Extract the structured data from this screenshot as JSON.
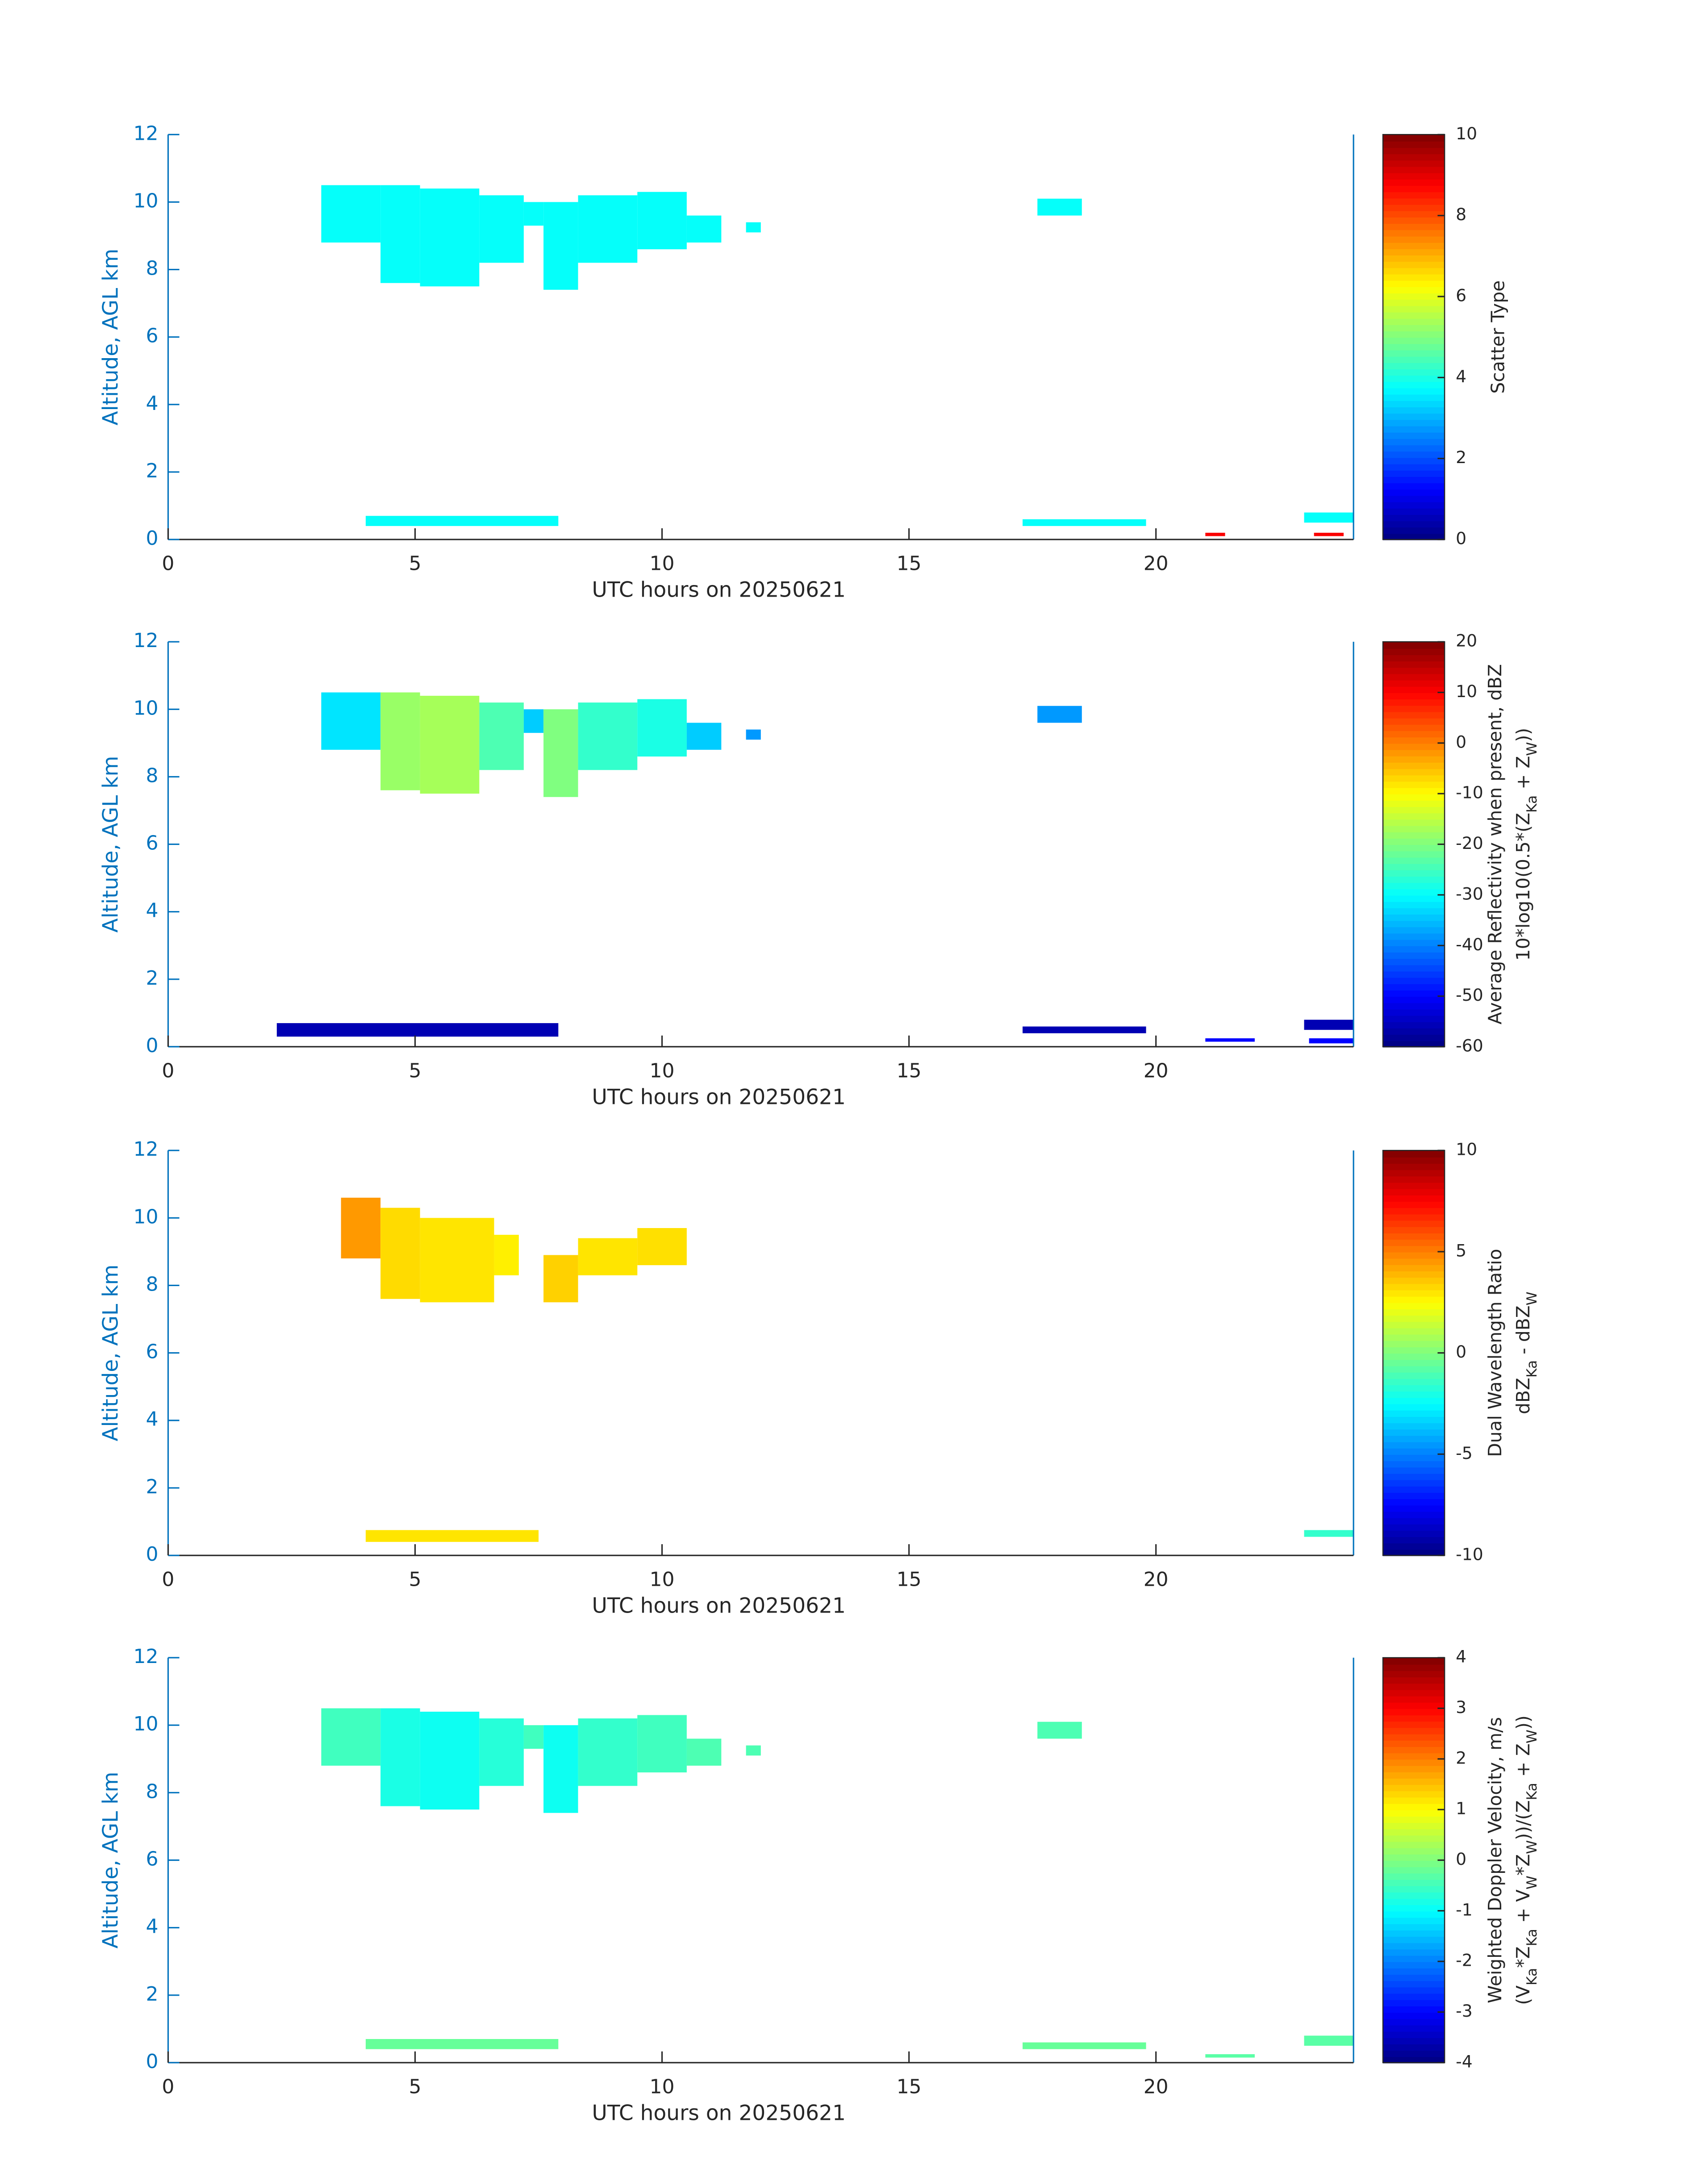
{
  "chart_data": [
    {
      "type": "heatmap",
      "xlabel": "UTC hours on 20250621",
      "ylabel": "Altitude, AGL km",
      "xlim": [
        0,
        24
      ],
      "ylim": [
        0,
        12
      ],
      "xticks": [
        0,
        5,
        10,
        15,
        20
      ],
      "yticks": [
        0,
        2,
        4,
        6,
        8,
        10,
        12
      ],
      "clim": [
        0,
        10
      ],
      "cticks": [
        0,
        2,
        4,
        6,
        8,
        10
      ],
      "colormap": "jet",
      "colorbar_label": [
        [
          {
            "text": "Scatter Type",
            "sub": false
          }
        ]
      ],
      "cells": [
        [
          3.1,
          4.3,
          8.8,
          10.5,
          3.8
        ],
        [
          4.3,
          5.1,
          7.6,
          10.5,
          3.8
        ],
        [
          5.1,
          6.3,
          7.5,
          10.4,
          3.8
        ],
        [
          6.3,
          7.2,
          8.2,
          10.2,
          3.8
        ],
        [
          7.2,
          7.6,
          9.3,
          10.0,
          3.8
        ],
        [
          7.6,
          8.3,
          7.4,
          10.0,
          3.8
        ],
        [
          8.3,
          9.5,
          8.2,
          10.2,
          3.8
        ],
        [
          9.5,
          10.5,
          8.6,
          10.3,
          3.8
        ],
        [
          10.5,
          11.2,
          8.8,
          9.6,
          3.8
        ],
        [
          11.7,
          12.0,
          9.1,
          9.4,
          3.8
        ],
        [
          17.6,
          18.5,
          9.6,
          10.1,
          3.8
        ],
        [
          4.0,
          7.9,
          0.4,
          0.7,
          3.8
        ],
        [
          17.3,
          19.8,
          0.4,
          0.6,
          3.8
        ],
        [
          23.0,
          24.0,
          0.5,
          0.8,
          3.8
        ],
        [
          21.0,
          21.4,
          0.1,
          0.2,
          8.8
        ],
        [
          23.2,
          23.8,
          0.1,
          0.2,
          8.8
        ]
      ]
    },
    {
      "type": "heatmap",
      "xlabel": "UTC hours on 20250621",
      "ylabel": "Altitude, AGL km",
      "xlim": [
        0,
        24
      ],
      "ylim": [
        0,
        12
      ],
      "xticks": [
        0,
        5,
        10,
        15,
        20
      ],
      "yticks": [
        0,
        2,
        4,
        6,
        8,
        10,
        12
      ],
      "clim": [
        -60,
        20
      ],
      "cticks": [
        -60,
        -50,
        -40,
        -30,
        -20,
        -10,
        0,
        10,
        20
      ],
      "colormap": "jet",
      "colorbar_label": [
        [
          {
            "text": "Average Reflectivity when present, dBZ",
            "sub": false
          }
        ],
        [
          {
            "text": "10*log10(0.5*(Z",
            "sub": false
          },
          {
            "text": "Ka",
            "sub": true
          },
          {
            "text": " + Z",
            "sub": false
          },
          {
            "text": "W",
            "sub": true
          },
          {
            "text": "))",
            "sub": false
          }
        ]
      ],
      "cells": [
        [
          3.1,
          4.3,
          8.8,
          10.5,
          -32
        ],
        [
          4.3,
          5.1,
          7.6,
          10.5,
          -18
        ],
        [
          5.1,
          6.3,
          7.5,
          10.4,
          -17
        ],
        [
          6.3,
          7.2,
          8.2,
          10.2,
          -24
        ],
        [
          7.2,
          7.6,
          9.3,
          10.0,
          -34
        ],
        [
          7.6,
          8.3,
          7.4,
          10.0,
          -20
        ],
        [
          8.3,
          9.5,
          8.2,
          10.2,
          -26
        ],
        [
          9.5,
          10.5,
          8.6,
          10.3,
          -28
        ],
        [
          10.5,
          11.2,
          8.8,
          9.6,
          -34
        ],
        [
          11.7,
          12.0,
          9.1,
          9.4,
          -38
        ],
        [
          17.6,
          18.5,
          9.6,
          10.1,
          -38
        ],
        [
          2.2,
          7.9,
          0.3,
          0.7,
          -56
        ],
        [
          17.3,
          19.8,
          0.4,
          0.6,
          -56
        ],
        [
          23.0,
          24.0,
          0.5,
          0.8,
          -56
        ],
        [
          21.0,
          22.0,
          0.15,
          0.25,
          -50
        ],
        [
          23.1,
          24.0,
          0.1,
          0.25,
          -50
        ]
      ]
    },
    {
      "type": "heatmap",
      "xlabel": "UTC hours on 20250621",
      "ylabel": "Altitude, AGL km",
      "xlim": [
        0,
        24
      ],
      "ylim": [
        0,
        12
      ],
      "xticks": [
        0,
        5,
        10,
        15,
        20
      ],
      "yticks": [
        0,
        2,
        4,
        6,
        8,
        10,
        12
      ],
      "clim": [
        -10,
        10
      ],
      "cticks": [
        -10,
        -5,
        0,
        5,
        10
      ],
      "colormap": "jet",
      "colorbar_label": [
        [
          {
            "text": "Dual Wavelength Ratio",
            "sub": false
          }
        ],
        [
          {
            "text": "dBZ",
            "sub": false
          },
          {
            "text": "Ka",
            "sub": true
          },
          {
            "text": " - dBZ",
            "sub": false
          },
          {
            "text": "W",
            "sub": true
          }
        ]
      ],
      "cells": [
        [
          3.5,
          4.3,
          8.8,
          10.6,
          4.5
        ],
        [
          4.3,
          5.1,
          7.6,
          10.3,
          3.2
        ],
        [
          5.1,
          6.6,
          7.5,
          10.0,
          3.0
        ],
        [
          6.6,
          7.1,
          8.3,
          9.5,
          2.8
        ],
        [
          7.6,
          8.3,
          7.5,
          8.9,
          3.4
        ],
        [
          8.3,
          9.5,
          8.3,
          9.4,
          3.0
        ],
        [
          9.5,
          10.5,
          8.6,
          9.7,
          3.1
        ],
        [
          4.0,
          7.5,
          0.4,
          0.75,
          3.0
        ],
        [
          23.0,
          24.0,
          0.55,
          0.75,
          -1.5
        ]
      ]
    },
    {
      "type": "heatmap",
      "xlabel": "UTC hours on 20250621",
      "ylabel": "Altitude, AGL km",
      "xlim": [
        0,
        24
      ],
      "ylim": [
        0,
        12
      ],
      "xticks": [
        0,
        5,
        10,
        15,
        20
      ],
      "yticks": [
        0,
        2,
        4,
        6,
        8,
        10,
        12
      ],
      "clim": [
        -4,
        4
      ],
      "cticks": [
        -4,
        -3,
        -2,
        -1,
        0,
        1,
        2,
        3,
        4
      ],
      "colormap": "jet",
      "colorbar_label": [
        [
          {
            "text": "Weighted Doppler Velocity, m/s",
            "sub": false
          }
        ],
        [
          {
            "text": "(V",
            "sub": false
          },
          {
            "text": "Ka",
            "sub": true
          },
          {
            "text": "*Z",
            "sub": false
          },
          {
            "text": "Ka",
            "sub": true
          },
          {
            "text": " + V",
            "sub": false
          },
          {
            "text": "W",
            "sub": true
          },
          {
            "text": "*Z",
            "sub": false
          },
          {
            "text": "W",
            "sub": true
          },
          {
            "text": "))/(Z",
            "sub": false
          },
          {
            "text": "Ka",
            "sub": true
          },
          {
            "text": " + Z",
            "sub": false
          },
          {
            "text": "W",
            "sub": true
          },
          {
            "text": "))",
            "sub": false
          }
        ]
      ],
      "cells": [
        [
          3.1,
          4.3,
          8.8,
          10.5,
          -0.5
        ],
        [
          4.3,
          5.1,
          7.6,
          10.5,
          -0.8
        ],
        [
          5.1,
          6.3,
          7.5,
          10.4,
          -0.9
        ],
        [
          6.3,
          7.2,
          8.2,
          10.2,
          -0.7
        ],
        [
          7.2,
          7.6,
          9.3,
          10.0,
          -0.5
        ],
        [
          7.6,
          8.3,
          7.4,
          10.0,
          -0.9
        ],
        [
          8.3,
          9.5,
          8.2,
          10.2,
          -0.6
        ],
        [
          9.5,
          10.5,
          8.6,
          10.3,
          -0.5
        ],
        [
          10.5,
          11.2,
          8.8,
          9.6,
          -0.4
        ],
        [
          11.7,
          12.0,
          9.1,
          9.4,
          -0.4
        ],
        [
          17.6,
          18.5,
          9.6,
          10.1,
          -0.4
        ],
        [
          4.0,
          7.9,
          0.4,
          0.7,
          -0.2
        ],
        [
          17.3,
          19.8,
          0.4,
          0.6,
          -0.2
        ],
        [
          23.0,
          24.0,
          0.5,
          0.8,
          -0.3
        ],
        [
          21.0,
          22.0,
          0.15,
          0.25,
          -0.3
        ]
      ]
    }
  ]
}
